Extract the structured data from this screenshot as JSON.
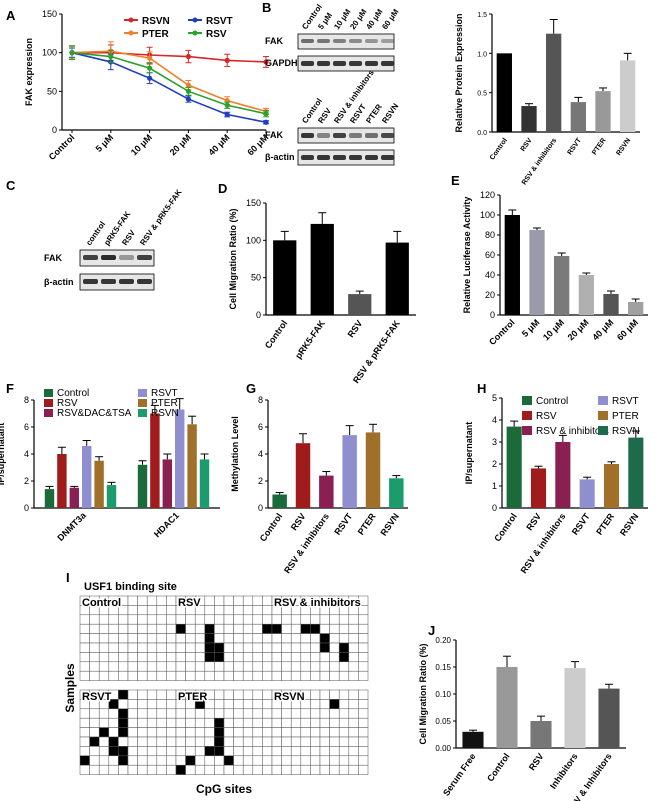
{
  "panels": [
    {
      "id": "A",
      "type": "line",
      "letter": "A",
      "ylabel": "FAK expression",
      "ylim": [
        0,
        150
      ],
      "yticks": [
        0,
        50,
        100,
        150
      ],
      "categories": [
        "Control",
        "5 μM",
        "10 μM",
        "20 μM",
        "40 μM",
        "60 μM"
      ],
      "series": [
        {
          "name": "RSVN",
          "color": "#d62728",
          "marker": "bar",
          "values": [
            100,
            100,
            97,
            95,
            90,
            88
          ],
          "errors": [
            8,
            10,
            10,
            8,
            8,
            7
          ]
        },
        {
          "name": "PTER",
          "color": "#f07f2f",
          "marker": "triangle",
          "values": [
            100,
            102,
            93,
            58,
            38,
            24
          ],
          "errors": [
            8,
            12,
            8,
            6,
            5,
            4
          ]
        },
        {
          "name": "RSVT",
          "color": "#1f3fbf",
          "marker": "square",
          "values": [
            100,
            88,
            67,
            40,
            20,
            10
          ],
          "errors": [
            6,
            10,
            7,
            4,
            3,
            2
          ]
        },
        {
          "name": "RSV",
          "color": "#2ca02c",
          "marker": "diamond",
          "values": [
            100,
            95,
            80,
            50,
            32,
            21
          ],
          "errors": [
            9,
            8,
            6,
            5,
            4,
            4
          ]
        }
      ]
    },
    {
      "id": "B2",
      "type": "bar",
      "ylabel": "Relative Protein Expression",
      "ylim": [
        0,
        1.5
      ],
      "yticks": [
        "0.0",
        "0.5",
        "1.0",
        "1.5"
      ],
      "categories": [
        "Control",
        "RSV",
        "RSV & inhibitors",
        "RSVT",
        "PTER",
        "RSVN"
      ],
      "values": [
        1.0,
        0.33,
        1.25,
        0.38,
        0.52,
        0.91
      ],
      "errors": [
        0,
        0.03,
        0.18,
        0.06,
        0.04,
        0.09
      ],
      "colors": [
        "#000000",
        "#333333",
        "#555555",
        "#777777",
        "#999999",
        "#cccccc"
      ]
    },
    {
      "id": "D",
      "type": "bar",
      "letter": "D",
      "ylabel": "Cell Migration Ratio (%)",
      "ylim": [
        0,
        150
      ],
      "yticks": [
        0,
        50,
        100,
        150
      ],
      "categories": [
        "Control",
        "pRK5-FAK",
        "RSV",
        "RSV & pRK5-FAK"
      ],
      "values": [
        100,
        122,
        28,
        97
      ],
      "errors": [
        12,
        15,
        4,
        15
      ],
      "colors": [
        "#000000",
        "#000000",
        "#555555",
        "#000000"
      ]
    },
    {
      "id": "E",
      "type": "bar",
      "letter": "E",
      "ylabel": "Relative Luciferase Activity",
      "ylim": [
        0,
        120
      ],
      "yticks": [
        0,
        20,
        40,
        60,
        80,
        100,
        120
      ],
      "categories": [
        "Control",
        "5 μM",
        "10 μM",
        "20 μM",
        "40 μM",
        "60 μM"
      ],
      "values": [
        100,
        85,
        59,
        40,
        21,
        13
      ],
      "errors": [
        5,
        2,
        3,
        2,
        3,
        3
      ],
      "colors": [
        "#000000",
        "#9a9aa8",
        "#7a7a7a",
        "#b0b0b0",
        "#555555",
        "#a0a0a0"
      ]
    },
    {
      "id": "F",
      "type": "groupbar",
      "letter": "F",
      "ylabel": "IP/supernatant",
      "ylim": [
        0,
        8
      ],
      "yticks": [
        0,
        2,
        4,
        6,
        8
      ],
      "categories": [
        "DNMT3a",
        "HDAC1"
      ],
      "series": [
        {
          "name": "Control",
          "color": "#1b6b3a",
          "values": [
            1.4,
            3.2
          ],
          "errors": [
            0.2,
            0.3
          ]
        },
        {
          "name": "RSV",
          "color": "#a01b1b",
          "values": [
            4.0,
            7.0
          ],
          "errors": [
            0.5,
            0.6
          ]
        },
        {
          "name": "RSV&DAC&TSA",
          "color": "#8a1f52",
          "values": [
            1.5,
            3.6
          ],
          "errors": [
            0.1,
            0.4
          ]
        },
        {
          "name": "RSVT",
          "color": "#8f8fd0",
          "values": [
            4.6,
            7.3
          ],
          "errors": [
            0.4,
            0.8
          ]
        },
        {
          "name": "PTER",
          "color": "#a0702a",
          "values": [
            3.5,
            6.2
          ],
          "errors": [
            0.3,
            0.6
          ]
        },
        {
          "name": "RSVN",
          "color": "#1c9c6c",
          "values": [
            1.7,
            3.6
          ],
          "errors": [
            0.2,
            0.4
          ]
        }
      ]
    },
    {
      "id": "G",
      "type": "bar",
      "letter": "G",
      "ylabel": "Methylation Level",
      "ylim": [
        0,
        8
      ],
      "yticks": [
        0,
        2,
        4,
        6,
        8
      ],
      "categories": [
        "Control",
        "RSV",
        "RSV & inhibitors",
        "RSVT",
        "PTER",
        "RSVN"
      ],
      "values": [
        1.0,
        4.8,
        2.4,
        5.4,
        5.6,
        2.2
      ],
      "errors": [
        0.15,
        0.7,
        0.3,
        0.7,
        0.6,
        0.2
      ],
      "colors": [
        "#1b6b3a",
        "#a01b1b",
        "#8a1f52",
        "#8f8fd0",
        "#a0702a",
        "#1c9c6c"
      ]
    },
    {
      "id": "H",
      "type": "bar",
      "letter": "H",
      "ylabel": "IP/supernatant",
      "ylim": [
        0,
        5
      ],
      "yticks": [
        0,
        1,
        2,
        3,
        4,
        5
      ],
      "categories": [
        "Control",
        "RSV",
        "RSV & inhibitors",
        "RSVT",
        "PTER",
        "RSVN"
      ],
      "values": [
        3.7,
        1.8,
        3.0,
        1.3,
        2.0,
        3.2
      ],
      "errors": [
        0.25,
        0.1,
        0.3,
        0.1,
        0.1,
        0.3
      ],
      "colors": [
        "#1b6b3a",
        "#a01b1b",
        "#8a1f52",
        "#8f8fd0",
        "#a0702a",
        "#1c6b4a"
      ]
    },
    {
      "id": "J",
      "type": "bar",
      "letter": "J",
      "ylabel": "Cell Migration Ratio (%)",
      "ylim": [
        0,
        0.2
      ],
      "yticks": [
        "0.00",
        "0.05",
        "0.10",
        "0.15",
        "0.20"
      ],
      "categories": [
        "Serum Free",
        "Control",
        "RSV",
        "Inhibitors",
        "RSV & Inhibitors"
      ],
      "values": [
        0.03,
        0.15,
        0.05,
        0.148,
        0.11
      ],
      "errors": [
        0.003,
        0.02,
        0.009,
        0.012,
        0.008
      ],
      "colors": [
        "#111111",
        "#999999",
        "#777777",
        "#cccccc",
        "#555555"
      ]
    }
  ],
  "legends": {
    "A": {
      "items": [
        {
          "name": "RSVN",
          "color": "#d62728"
        },
        {
          "name": "RSVT",
          "color": "#1f3fbf"
        },
        {
          "name": "PTER",
          "color": "#f07f2f"
        },
        {
          "name": "RSV",
          "color": "#2ca02c"
        }
      ]
    },
    "F": {
      "items": [
        "Control",
        "RSV",
        "RSV&DAC&TSA",
        "RSVT",
        "PTER",
        "RSVN"
      ]
    },
    "H": {
      "items": [
        "Control",
        "RSV",
        "RSV & inhibitors",
        "RSVT",
        "PTER",
        "RSVN"
      ],
      "colors": [
        "#1b6b3a",
        "#a01b1b",
        "#8a1f52",
        "#8f8fd0",
        "#a0702a",
        "#1c6b4a"
      ]
    }
  },
  "blot_B": {
    "letter": "B",
    "top_lanes": [
      "Control",
      "5 μM",
      "10 μM",
      "20 μM",
      "40 μM",
      "60 μM"
    ],
    "top_rows": [
      "FAK",
      "GAPDH"
    ],
    "bottom_lanes": [
      "Control",
      "RSV",
      "RSV & inhibitors",
      "RSVT",
      "PTER",
      "RSVN"
    ],
    "bottom_rows": [
      "FAK",
      "β-actin"
    ]
  },
  "blot_C": {
    "letter": "C",
    "lanes": [
      "control",
      "pRK5-FAK",
      "RSV",
      "RSV & pRK5-FAK"
    ],
    "rows": [
      "FAK",
      "β-actin"
    ]
  },
  "panel_I": {
    "letter": "I",
    "annotation": "USF1 binding site",
    "ylabel": "Samples",
    "xlabel": "CpG sites",
    "grids": [
      {
        "label": "Control",
        "cells": []
      },
      {
        "label": "RSV",
        "cells": [
          [
            0,
            3
          ],
          [
            3,
            3
          ],
          [
            3,
            4
          ],
          [
            3,
            5
          ],
          [
            3,
            6
          ],
          [
            4,
            5
          ],
          [
            4,
            6
          ],
          [
            9,
            3
          ]
        ]
      },
      {
        "label": "RSV & inhibitors",
        "cells": [
          [
            0,
            3
          ],
          [
            3,
            3
          ],
          [
            4,
            3
          ],
          [
            5,
            4
          ],
          [
            5,
            5
          ],
          [
            7,
            5
          ],
          [
            7,
            6
          ]
        ]
      },
      {
        "label": "RSVT",
        "cells": [
          [
            3,
            1
          ],
          [
            4,
            0
          ],
          [
            4,
            2
          ],
          [
            4,
            3
          ],
          [
            4,
            4
          ],
          [
            2,
            4
          ],
          [
            1,
            5
          ],
          [
            3,
            5
          ],
          [
            3,
            6
          ],
          [
            0,
            7
          ],
          [
            4,
            6
          ],
          [
            4,
            7
          ]
        ]
      },
      {
        "label": "PTER",
        "cells": [
          [
            2,
            1
          ],
          [
            4,
            3
          ],
          [
            4,
            4
          ],
          [
            4,
            5
          ],
          [
            4,
            6
          ],
          [
            3,
            6
          ],
          [
            1,
            7
          ],
          [
            5,
            7
          ],
          [
            0,
            8
          ]
        ]
      },
      {
        "label": "RSVN",
        "cells": [
          [
            6,
            1
          ]
        ]
      }
    ]
  }
}
